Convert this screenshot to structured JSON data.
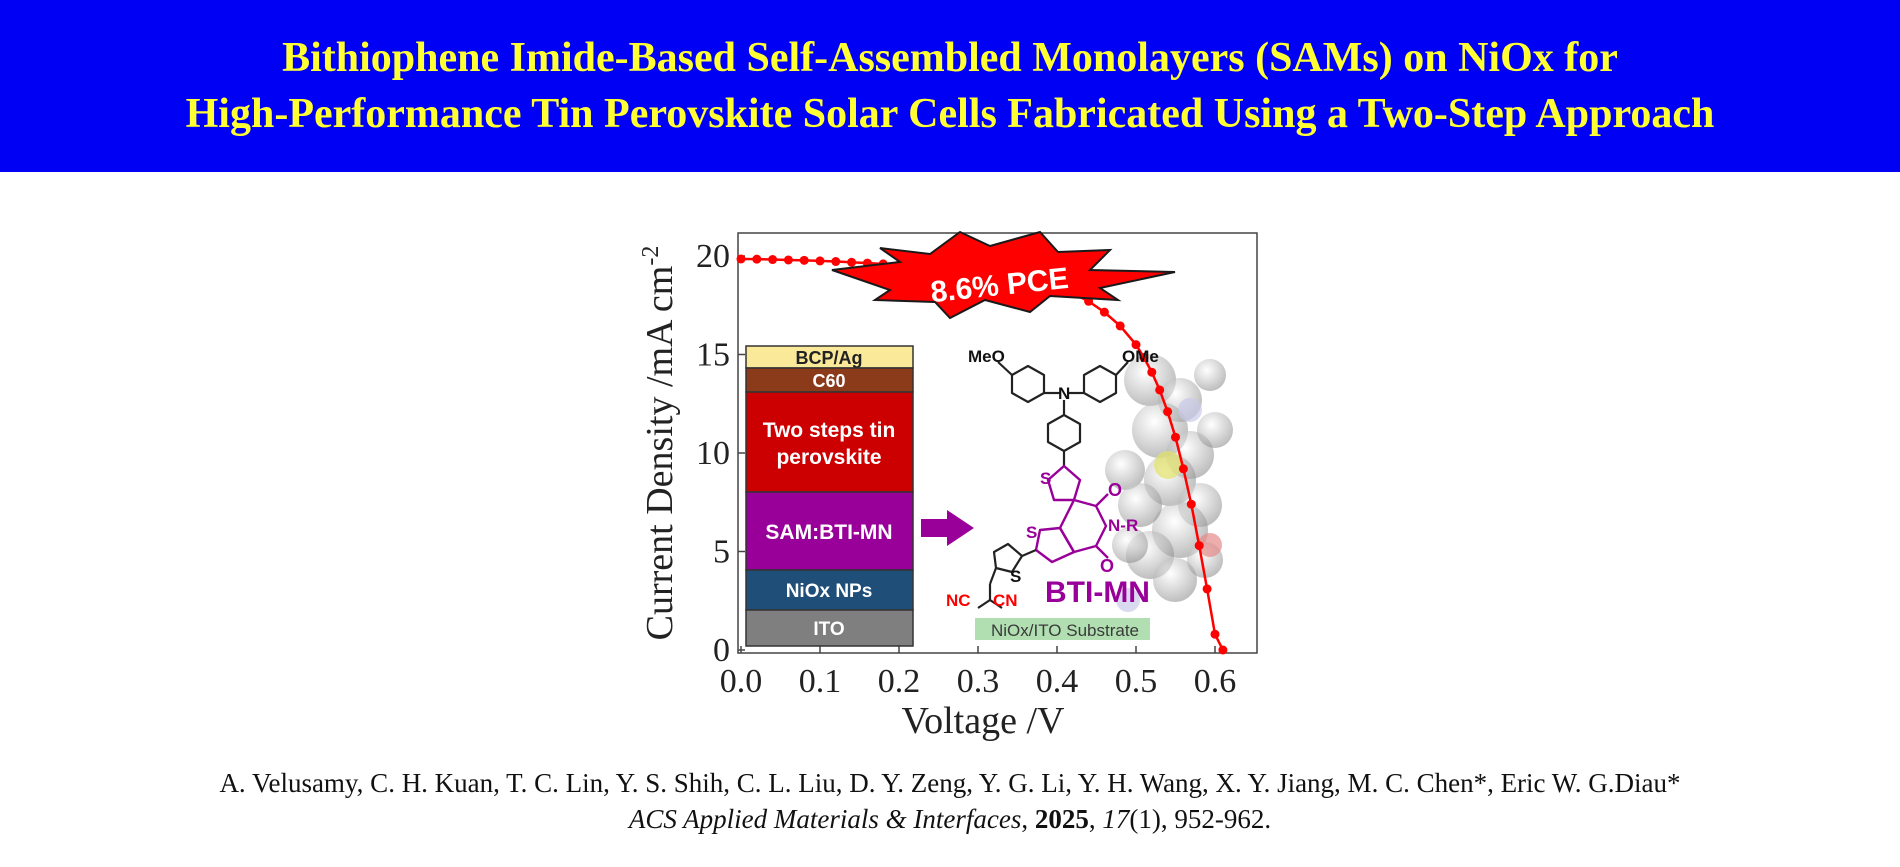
{
  "banner": {
    "title_line1": "Bithiophene Imide-Based Self-Assembled Monolayers (SAMs) on NiOx for",
    "title_line2": "High-Performance Tin Perovskite Solar Cells Fabricated Using a Two-Step Approach"
  },
  "colors": {
    "banner_bg": "#0000f5",
    "banner_text": "#ffff33",
    "curve": "#ff0000",
    "molecule_accent": "#990099"
  },
  "chart_data": {
    "type": "line",
    "xlabel": "Voltage /V",
    "ylabel": "Current Density /mA cm",
    "ylabel_sup": "-2",
    "xlim": [
      0.0,
      0.65
    ],
    "ylim": [
      0,
      21
    ],
    "xticks": [
      "0.0",
      "0.1",
      "0.2",
      "0.3",
      "0.4",
      "0.5",
      "0.6"
    ],
    "yticks": [
      "0",
      "5",
      "10",
      "15",
      "20"
    ],
    "series": [
      {
        "color": "#ff0000",
        "marker": "circle",
        "x": [
          0.0,
          0.02,
          0.04,
          0.06,
          0.08,
          0.1,
          0.12,
          0.14,
          0.16,
          0.18,
          0.2,
          0.22,
          0.24,
          0.26,
          0.28,
          0.3,
          0.32,
          0.34,
          0.36,
          0.38,
          0.4,
          0.42,
          0.44,
          0.46,
          0.48,
          0.5,
          0.51,
          0.52,
          0.53,
          0.54,
          0.55,
          0.56,
          0.57,
          0.58,
          0.59,
          0.6,
          0.61
        ],
        "y": [
          19.85,
          19.84,
          19.82,
          19.8,
          19.78,
          19.75,
          19.72,
          19.68,
          19.64,
          19.6,
          19.55,
          19.5,
          19.44,
          19.38,
          19.3,
          19.22,
          19.12,
          19.0,
          18.85,
          18.66,
          18.42,
          18.1,
          17.7,
          17.15,
          16.45,
          15.5,
          14.85,
          14.1,
          13.2,
          12.1,
          10.8,
          9.2,
          7.4,
          5.3,
          3.1,
          0.8,
          0.0
        ]
      }
    ],
    "annotations": {
      "pce_badge": "8.6% PCE",
      "device_stack": [
        "BCP/Ag",
        "C60",
        "Two steps tin",
        "perovskite",
        "SAM:BTI-MN",
        "NiOx NPs",
        "ITO"
      ],
      "molecule_name": "BTI-MN",
      "substrate_label": "NiOx/ITO Substrate",
      "atom_labels": {
        "meo_left": "MeO",
        "ome_right": "OMe",
        "n_amine": "N",
        "s1": "S",
        "s2": "S",
        "s3": "S",
        "o1": "O",
        "o2": "O",
        "nr": "N-R",
        "nc_left": "NC",
        "cn_right": "CN"
      }
    }
  },
  "citation": {
    "authors": "A. Velusamy, C. H. Kuan, T. C. Lin, Y. S. Shih, C. L. Liu, D. Y. Zeng, Y. G. Li, Y. H. Wang, X. Y. Jiang, M. C. Chen*, Eric W. G.Diau*",
    "journal": "ACS Applied Materials & Interfaces",
    "sep1": ", ",
    "year": "2025",
    "sep2": ", ",
    "volume": "17",
    "issue": "(1)",
    "pages": ", 952-962."
  }
}
